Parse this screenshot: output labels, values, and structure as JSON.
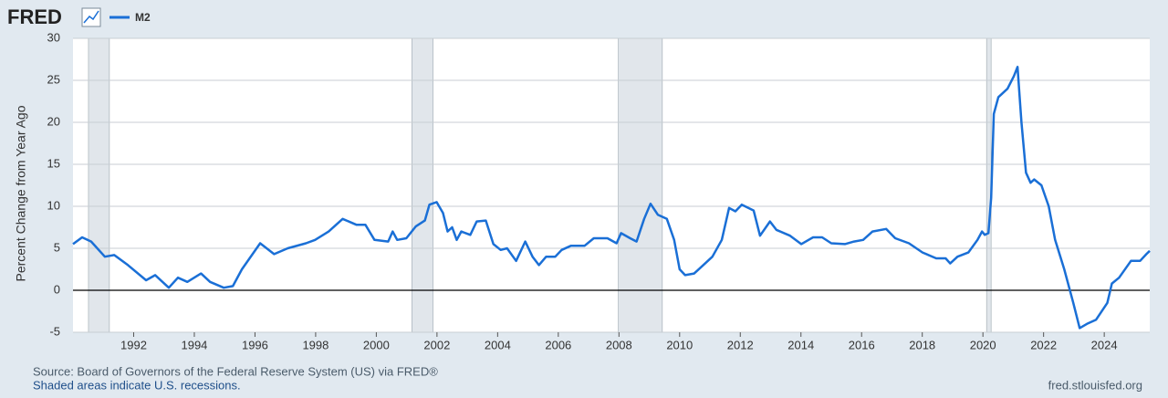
{
  "header": {
    "logo": "FRED"
  },
  "chart_data": {
    "type": "line",
    "y_label": "Percent Change from Year Ago",
    "xlim": [
      1990,
      2025.5
    ],
    "xticks": [
      1992,
      1994,
      1996,
      1998,
      2000,
      2002,
      2004,
      2006,
      2008,
      2010,
      2012,
      2014,
      2016,
      2018,
      2020,
      2022,
      2024
    ],
    "ylim": [
      -5,
      30
    ],
    "yticks": [
      -5,
      0,
      5,
      10,
      15,
      20,
      25,
      30
    ],
    "grid": true,
    "zero_line": true,
    "legend": "top-left",
    "recessions": [
      [
        1990.51,
        1991.2
      ],
      [
        2001.17,
        2001.87
      ],
      [
        2007.98,
        2009.43
      ],
      [
        2020.12,
        2020.27
      ]
    ],
    "recession_color": "#e1e6eb",
    "x": [
      1990.0,
      1990.3,
      1990.6,
      1991.05,
      1991.36,
      1991.81,
      1992.41,
      1992.71,
      1993.16,
      1993.46,
      1993.77,
      1994.22,
      1994.52,
      1994.97,
      1995.27,
      1995.57,
      1996.17,
      1996.63,
      1997.08,
      1997.68,
      1997.98,
      1998.43,
      1998.89,
      1999.34,
      1999.64,
      1999.94,
      2000.39,
      2000.54,
      2000.69,
      2000.99,
      2001.3,
      2001.6,
      2001.75,
      2001.99,
      2002.2,
      2002.35,
      2002.5,
      2002.65,
      2002.8,
      2003.1,
      2003.31,
      2003.61,
      2003.86,
      2004.1,
      2004.31,
      2004.61,
      2004.91,
      2005.15,
      2005.36,
      2005.6,
      2005.9,
      2006.11,
      2006.42,
      2006.87,
      2007.17,
      2007.62,
      2007.92,
      2008.07,
      2008.37,
      2008.58,
      2008.83,
      2009.04,
      2009.28,
      2009.58,
      2009.82,
      2010.0,
      2010.18,
      2010.48,
      2010.78,
      2011.08,
      2011.39,
      2011.63,
      2011.84,
      2012.05,
      2012.44,
      2012.65,
      2012.98,
      2013.19,
      2013.64,
      2014.01,
      2014.4,
      2014.7,
      2015.0,
      2015.45,
      2015.75,
      2016.05,
      2016.36,
      2016.81,
      2017.11,
      2017.56,
      2018.01,
      2018.46,
      2018.77,
      2018.92,
      2019.16,
      2019.52,
      2019.82,
      2019.97,
      2020.06,
      2020.18,
      2020.27,
      2020.36,
      2020.51,
      2020.66,
      2020.81,
      2021.02,
      2021.14,
      2021.27,
      2021.42,
      2021.57,
      2021.69,
      2021.93,
      2022.17,
      2022.38,
      2022.68,
      2022.98,
      2023.19,
      2023.43,
      2023.73,
      2024.1,
      2024.25,
      2024.49,
      2024.88,
      2025.18,
      2025.39,
      2025.5
    ],
    "series": [
      {
        "name": "M2",
        "color": "#1a6fd6",
        "values": [
          5.5,
          6.3,
          5.8,
          4.0,
          4.2,
          3.0,
          1.2,
          1.8,
          0.3,
          1.5,
          1.0,
          2.0,
          1.0,
          0.3,
          0.5,
          2.5,
          5.6,
          4.3,
          5.0,
          5.6,
          6.0,
          7.0,
          8.5,
          7.8,
          7.8,
          6.0,
          5.8,
          7.0,
          6.0,
          6.2,
          7.6,
          8.3,
          10.2,
          10.5,
          9.2,
          7.0,
          7.5,
          6.0,
          7.0,
          6.6,
          8.2,
          8.3,
          5.5,
          4.8,
          5.0,
          3.5,
          5.8,
          4.0,
          3.0,
          4.0,
          4.0,
          4.8,
          5.3,
          5.3,
          6.2,
          6.2,
          5.6,
          6.8,
          6.2,
          5.8,
          8.5,
          10.3,
          9.0,
          8.5,
          6.0,
          2.5,
          1.8,
          2.0,
          3.0,
          4.0,
          6.0,
          9.8,
          9.4,
          10.2,
          9.5,
          6.5,
          8.2,
          7.2,
          6.5,
          5.5,
          6.3,
          6.3,
          5.6,
          5.5,
          5.8,
          6.0,
          7.0,
          7.3,
          6.2,
          5.6,
          4.5,
          3.8,
          3.8,
          3.2,
          4.0,
          4.5,
          6.0,
          7.0,
          6.6,
          6.8,
          11.0,
          21.0,
          23.0,
          23.5,
          24.0,
          25.5,
          26.6,
          20.0,
          14.0,
          12.8,
          13.2,
          12.5,
          10.0,
          6.0,
          2.5,
          -1.5,
          -4.5,
          -4.0,
          -3.5,
          -1.5,
          0.8,
          1.5,
          3.5,
          3.5,
          4.3,
          4.7
        ]
      }
    ]
  },
  "footer": {
    "source": "Source: Board of Governors of the Federal Reserve System (US) via FRED®",
    "note": "Shaded areas indicate U.S. recessions.",
    "url": "fred.stlouisfed.org"
  }
}
